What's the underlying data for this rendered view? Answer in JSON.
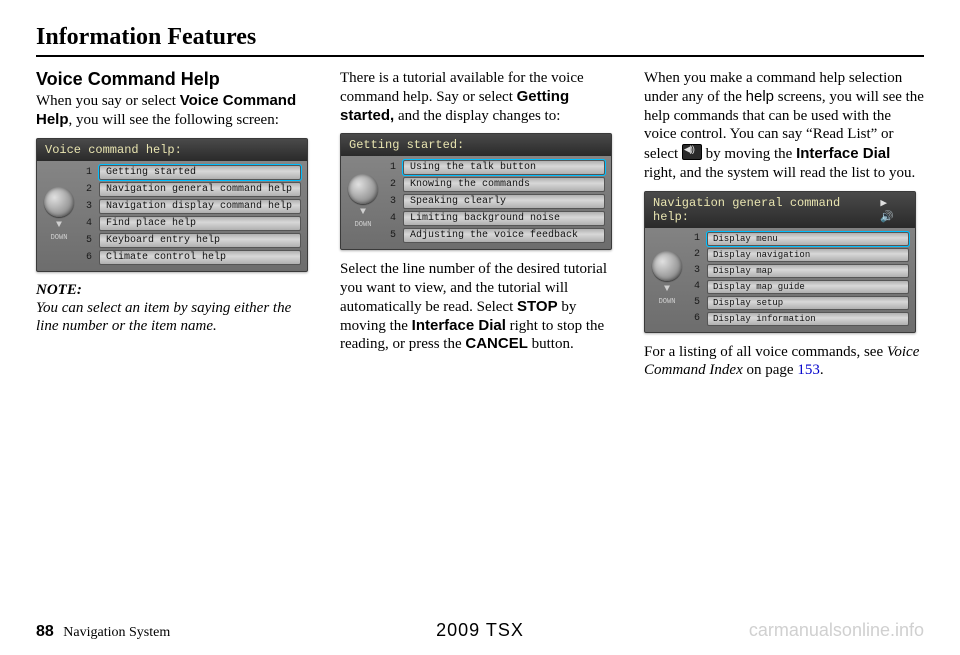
{
  "header": {
    "title": "Information Features"
  },
  "col1": {
    "subhead": "Voice Command Help",
    "para1_pre": "When you say or select ",
    "para1_bold": "Voice Command Help",
    "para1_post": ", you will see the following screen:",
    "note_label": "NOTE:",
    "note_body": "You can select an item by saying either the line number or the item name."
  },
  "screenshot1": {
    "title": "Voice command help:",
    "items": [
      "Getting started",
      "Navigation general command help",
      "Navigation display command help",
      "Find place help",
      "Keyboard entry help",
      "Climate control help"
    ],
    "selected_index": 0,
    "down_label": "DOWN"
  },
  "col2": {
    "para1_pre": "There is a tutorial available for the voice command help. Say or select ",
    "para1_bold": "Getting started,",
    "para1_post": " and the display changes to:",
    "para2_a": "Select the line number of the desired tutorial you want to view, and the tutorial will automatically be read. Select ",
    "para2_b": "STOP",
    "para2_c": " by moving the ",
    "para2_d": "Interface Dial",
    "para2_e": " right to stop the reading, or press the ",
    "para2_f": "CANCEL",
    "para2_g": " button."
  },
  "screenshot2": {
    "title": "Getting started:",
    "items": [
      "Using the talk button",
      "Knowing the commands",
      "Speaking clearly",
      "Limiting background noise",
      "Adjusting the voice feedback"
    ],
    "selected_index": 0,
    "down_label": "DOWN"
  },
  "col3": {
    "para1_a": "When you make a command help selection under any of the ",
    "para1_b": "help",
    "para1_c": " screens, you will see the help commands that can be used with the voice control. You can say “Read List” or select ",
    "para1_d": " by moving the ",
    "para1_e": "Interface Dial",
    "para1_f": " right, and the system will read the list to you.",
    "para2_a": "For a listing of all voice commands, see ",
    "para2_b": "Voice Command Index",
    "para2_c": " on page ",
    "para2_link": "153",
    "para2_d": "."
  },
  "screenshot3": {
    "title": "Navigation general command help:",
    "speaker": "▶ 🔊",
    "items": [
      "Display menu",
      "Display navigation",
      "Display map",
      "Display map guide",
      "Display setup",
      "Display information"
    ],
    "selected_index": 0,
    "down_label": "DOWN"
  },
  "footer": {
    "page_number": "88",
    "section": "Navigation System",
    "center": "2009  TSX",
    "watermark": "carmanualsonline.info"
  },
  "colors": {
    "link": "#0000cc",
    "rule": "#000000",
    "sel_outline": "#00bfff",
    "watermark": "#d0d0d0"
  }
}
